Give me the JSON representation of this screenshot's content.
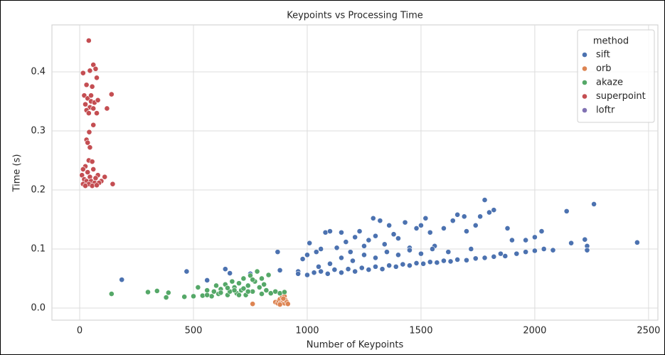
{
  "chart_data": {
    "type": "scatter",
    "title": "Keypoints vs Processing Time",
    "x_label": "Number of Keypoints",
    "y_label": "Time (s)",
    "legend_title": "method",
    "legend": "upper right",
    "grid": true,
    "xlim": [
      -122,
      2541
    ],
    "ylim": [
      -0.0205,
      0.4795
    ],
    "xticks": [
      0,
      500,
      1000,
      1500,
      2000,
      2500
    ],
    "yticks": [
      {
        "value": 0,
        "label": "0.0"
      },
      0.1,
      0.2,
      0.3,
      0.4
    ],
    "series": [
      {
        "name": "sift",
        "color": "#4c72b0",
        "x": [
          185,
          470,
          560,
          640,
          660,
          750,
          870,
          880,
          960,
          980,
          1000,
          1010,
          1040,
          1060,
          1080,
          1100,
          1130,
          1150,
          1170,
          1190,
          1210,
          1230,
          1250,
          1270,
          1290,
          1300,
          1320,
          1340,
          1360,
          1380,
          1400,
          1430,
          1450,
          1480,
          1500,
          1520,
          1540,
          1560,
          1600,
          1640,
          1660,
          1690,
          1700,
          1740,
          1760,
          1780,
          1800,
          1820,
          1880,
          1900,
          1960,
          2000,
          2030,
          2140,
          2160,
          2220,
          2230,
          2260,
          2450,
          960,
          1000,
          1030,
          1060,
          1090,
          1120,
          1150,
          1180,
          1210,
          1240,
          1270,
          1300,
          1330,
          1360,
          1390,
          1420,
          1450,
          1480,
          1510,
          1540,
          1570,
          1600,
          1630,
          1660,
          1700,
          1740,
          1780,
          1820,
          1870,
          1920,
          1960,
          2000,
          2040,
          2080,
          2230,
          1100,
          1200,
          1300,
          1400,
          1500,
          1150,
          1250,
          1350,
          1450,
          1550,
          1050,
          1620,
          1720,
          1850
        ],
        "values": [
          0.048,
          0.062,
          0.047,
          0.066,
          0.059,
          0.058,
          0.095,
          0.064,
          0.062,
          0.083,
          0.09,
          0.11,
          0.095,
          0.1,
          0.128,
          0.13,
          0.102,
          0.128,
          0.112,
          0.095,
          0.12,
          0.13,
          0.105,
          0.115,
          0.152,
          0.122,
          0.148,
          0.108,
          0.14,
          0.125,
          0.118,
          0.145,
          0.102,
          0.135,
          0.14,
          0.152,
          0.128,
          0.105,
          0.135,
          0.148,
          0.158,
          0.155,
          0.13,
          0.14,
          0.155,
          0.183,
          0.162,
          0.166,
          0.135,
          0.115,
          0.115,
          0.12,
          0.13,
          0.164,
          0.11,
          0.116,
          0.105,
          0.176,
          0.111,
          0.058,
          0.056,
          0.06,
          0.062,
          0.058,
          0.065,
          0.06,
          0.066,
          0.062,
          0.068,
          0.065,
          0.07,
          0.066,
          0.072,
          0.07,
          0.074,
          0.072,
          0.076,
          0.075,
          0.078,
          0.077,
          0.08,
          0.079,
          0.082,
          0.081,
          0.084,
          0.085,
          0.087,
          0.088,
          0.092,
          0.095,
          0.097,
          0.1,
          0.098,
          0.098,
          0.075,
          0.08,
          0.085,
          0.09,
          0.092,
          0.085,
          0.09,
          0.095,
          0.098,
          0.1,
          0.07,
          0.095,
          0.1,
          0.092
        ]
      },
      {
        "name": "orb",
        "color": "#dd8452",
        "x": [
          760,
          860,
          870,
          875,
          880,
          885,
          890,
          895,
          900,
          900,
          905,
          910,
          915,
          880,
          895
        ],
        "values": [
          0.007,
          0.01,
          0.008,
          0.012,
          0.015,
          0.009,
          0.018,
          0.011,
          0.02,
          0.008,
          0.013,
          0.01,
          0.007,
          0.006,
          0.016
        ]
      },
      {
        "name": "akaze",
        "color": "#55a868",
        "x": [
          140,
          300,
          340,
          380,
          390,
          460,
          500,
          520,
          540,
          560,
          580,
          600,
          610,
          620,
          640,
          650,
          660,
          670,
          680,
          690,
          700,
          710,
          720,
          730,
          740,
          750,
          760,
          770,
          780,
          790,
          800,
          810,
          820,
          830,
          840,
          860,
          880,
          900,
          560,
          620,
          680,
          720,
          740,
          760,
          700,
          650,
          590,
          800
        ],
        "values": [
          0.024,
          0.027,
          0.029,
          0.018,
          0.026,
          0.019,
          0.02,
          0.035,
          0.021,
          0.03,
          0.02,
          0.038,
          0.024,
          0.032,
          0.04,
          0.022,
          0.028,
          0.045,
          0.035,
          0.025,
          0.042,
          0.03,
          0.05,
          0.022,
          0.038,
          0.055,
          0.028,
          0.045,
          0.062,
          0.035,
          0.024,
          0.04,
          0.03,
          0.056,
          0.025,
          0.028,
          0.025,
          0.027,
          0.022,
          0.026,
          0.03,
          0.033,
          0.028,
          0.048,
          0.022,
          0.034,
          0.028,
          0.05
        ]
      },
      {
        "name": "superpoint",
        "color": "#c44e52",
        "x": [
          40,
          60,
          70,
          45,
          15,
          75,
          30,
          55,
          140,
          20,
          35,
          50,
          65,
          80,
          25,
          45,
          30,
          60,
          120,
          75,
          40,
          50,
          60,
          42,
          30,
          35,
          45,
          40,
          55,
          25,
          15,
          60,
          35,
          80,
          10,
          45,
          110,
          70,
          20,
          30,
          50,
          95,
          145,
          15,
          40,
          65,
          85,
          25,
          55,
          75
        ],
        "values": [
          0.453,
          0.412,
          0.405,
          0.402,
          0.398,
          0.39,
          0.378,
          0.375,
          0.362,
          0.36,
          0.355,
          0.35,
          0.348,
          0.352,
          0.345,
          0.34,
          0.335,
          0.338,
          0.338,
          0.33,
          0.33,
          0.36,
          0.31,
          0.298,
          0.285,
          0.28,
          0.272,
          0.25,
          0.248,
          0.24,
          0.235,
          0.235,
          0.23,
          0.225,
          0.225,
          0.222,
          0.222,
          0.22,
          0.218,
          0.215,
          0.215,
          0.215,
          0.21,
          0.21,
          0.21,
          0.212,
          0.212,
          0.207,
          0.207,
          0.208
        ]
      },
      {
        "name": "loftr",
        "color": "#8172b3",
        "x": [],
        "values": []
      }
    ]
  }
}
